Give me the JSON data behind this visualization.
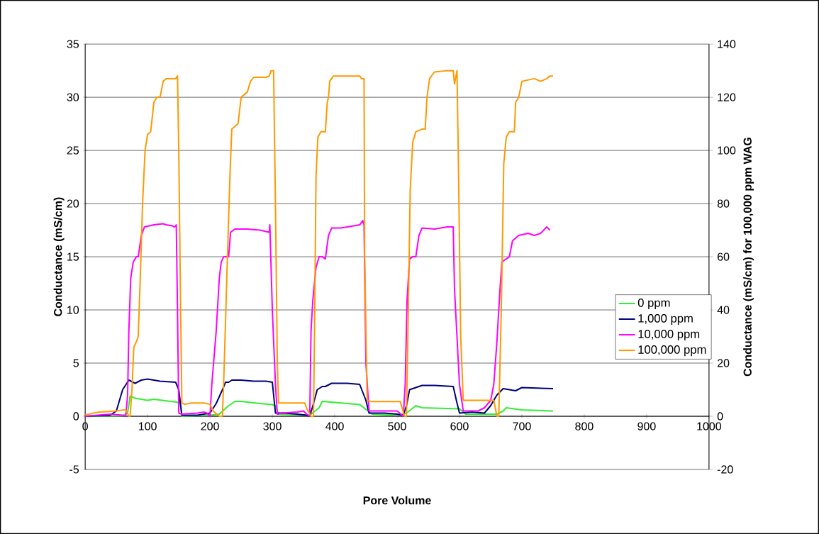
{
  "chart_data": {
    "type": "line",
    "xlabel": "Pore Volume",
    "ylabel": "Conductance (mS/cm)",
    "y2label": "Conductance (mS/cm) for 100,000 ppm WAG",
    "xlim": [
      0,
      1000
    ],
    "xticks": [
      0,
      100,
      200,
      300,
      400,
      500,
      600,
      700,
      800,
      900,
      1000
    ],
    "ylim": [
      -5,
      35
    ],
    "yticks": [
      -5,
      0,
      5,
      10,
      15,
      20,
      25,
      30,
      35
    ],
    "y2lim": [
      -20,
      140
    ],
    "y2ticks": [
      -20,
      0,
      20,
      40,
      60,
      80,
      100,
      120,
      140
    ],
    "grid": "y",
    "legend": "right",
    "marker": "none",
    "line_style": "solid",
    "series": [
      {
        "name": "0 ppm",
        "color": "#33ee33",
        "x": [
          0,
          60,
          68,
          72,
          80,
          100,
          110,
          150,
          152,
          155,
          200,
          215,
          230,
          240,
          250,
          280,
          300,
          305,
          310,
          360,
          375,
          380,
          400,
          440,
          460,
          500,
          515,
          530,
          540,
          600,
          610,
          660,
          670,
          675,
          700,
          750
        ],
        "values": [
          0,
          0.05,
          0.3,
          1.9,
          1.7,
          1.5,
          1.6,
          1.3,
          1.3,
          0,
          0.1,
          0.2,
          1.0,
          1.4,
          1.4,
          1.2,
          1.1,
          1.0,
          0.2,
          0.1,
          0.8,
          1.4,
          1.3,
          1.1,
          0.2,
          0.1,
          0.3,
          1.0,
          0.8,
          0.7,
          0.2,
          0.2,
          0.5,
          0.8,
          0.6,
          0.5
        ]
      },
      {
        "name": "1,000 ppm",
        "color": "#000080",
        "x": [
          0,
          40,
          50,
          55,
          60,
          70,
          80,
          90,
          100,
          120,
          145,
          150,
          155,
          180,
          200,
          210,
          220,
          225,
          230,
          235,
          250,
          270,
          290,
          300,
          305,
          320,
          340,
          355,
          360,
          365,
          372,
          380,
          385,
          395,
          420,
          440,
          450,
          455,
          480,
          500,
          510,
          515,
          520,
          530,
          540,
          560,
          590,
          595,
          600,
          620,
          640,
          650,
          660,
          670,
          680,
          690,
          700,
          750
        ],
        "values": [
          0,
          0.1,
          0.5,
          1.5,
          2.5,
          3.4,
          3.1,
          3.4,
          3.5,
          3.3,
          3.2,
          2.5,
          0.1,
          0.1,
          0.3,
          1.2,
          2.5,
          3.2,
          3.2,
          3.4,
          3.4,
          3.3,
          3.3,
          3.2,
          0.3,
          0.3,
          0.2,
          0.1,
          0,
          1,
          2.5,
          2.8,
          2.8,
          3.1,
          3.1,
          3.0,
          1.5,
          0.3,
          0.3,
          0.2,
          0.1,
          1,
          2.5,
          2.7,
          2.9,
          2.9,
          2.8,
          1.5,
          0.3,
          0.4,
          0.3,
          1,
          2,
          2.6,
          2.5,
          2.4,
          2.7,
          2.6
        ]
      },
      {
        "name": "10,000 ppm",
        "color": "#ff00ff",
        "x": [
          0,
          40,
          60,
          65,
          68,
          70,
          73,
          77,
          82,
          85,
          90,
          95,
          110,
          125,
          130,
          140,
          143,
          146,
          148,
          150,
          155,
          180,
          190,
          195,
          200,
          203,
          210,
          215,
          218,
          222,
          230,
          233,
          240,
          260,
          280,
          295,
          296,
          300,
          305,
          308,
          315,
          340,
          350,
          355,
          360,
          362,
          365,
          370,
          375,
          380,
          385,
          390,
          395,
          410,
          420,
          440,
          445,
          447,
          450,
          455,
          470,
          490,
          500,
          510,
          513,
          516,
          520,
          525,
          530,
          535,
          540,
          560,
          580,
          590,
          592,
          600,
          606,
          630,
          640,
          650,
          655,
          660,
          665,
          668,
          675,
          680,
          685,
          695,
          710,
          720,
          730,
          740,
          745
        ],
        "values": [
          0,
          0.2,
          0.1,
          0,
          2,
          8,
          13,
          14.5,
          15,
          15,
          17,
          17.8,
          18,
          18.1,
          18,
          17.9,
          17.8,
          18,
          10,
          0.3,
          0.2,
          0.3,
          0.4,
          0.3,
          0,
          3,
          8,
          13,
          14.5,
          15,
          15,
          17.3,
          17.6,
          17.6,
          17.5,
          17.3,
          18,
          10,
          3,
          0.2,
          0.3,
          0.4,
          0.5,
          0.2,
          0,
          8,
          11,
          14,
          15,
          15,
          14.8,
          17,
          17.7,
          17.7,
          17.8,
          18,
          18.4,
          18,
          5,
          0.5,
          0.5,
          0.5,
          0.5,
          0,
          3,
          11,
          14.8,
          15,
          15,
          17,
          17.7,
          17.6,
          17.8,
          17.8,
          12,
          3,
          0.5,
          0.5,
          0.8,
          1.5,
          3,
          7,
          12,
          14.5,
          14.8,
          15,
          16.5,
          17,
          17.2,
          17,
          17.2,
          17.8,
          17.5
        ]
      },
      {
        "name": "100,000 ppm",
        "color": "#ff9900",
        "axis": "y2",
        "x": [
          0,
          20,
          50,
          65,
          70,
          72,
          75,
          78,
          82,
          85,
          88,
          92,
          96,
          100,
          105,
          110,
          115,
          120,
          125,
          130,
          140,
          145,
          148,
          150,
          153,
          155,
          160,
          170,
          190,
          200,
          205,
          215,
          220,
          223,
          228,
          232,
          235,
          240,
          245,
          250,
          255,
          260,
          265,
          270,
          290,
          295,
          298,
          302,
          305,
          308,
          310,
          320,
          340,
          352,
          355,
          362,
          366,
          368,
          370,
          373,
          378,
          385,
          388,
          390,
          392,
          398,
          420,
          440,
          443,
          447,
          448,
          452,
          460,
          500,
          505,
          512,
          515,
          518,
          521,
          525,
          530,
          540,
          545,
          548,
          552,
          560,
          580,
          590,
          592,
          596,
          598,
          602,
          606,
          620,
          640,
          655,
          660,
          663,
          667,
          671,
          675,
          680,
          688,
          690,
          695,
          700,
          720,
          730,
          740,
          745,
          750
        ],
        "values": [
          0.5,
          1.5,
          2,
          2.5,
          0,
          0,
          10,
          26,
          28,
          30,
          50,
          80,
          100,
          106,
          107,
          118,
          120,
          120,
          126,
          127,
          127,
          127,
          128,
          100,
          40,
          5,
          4.5,
          5,
          5,
          4.5,
          2,
          0,
          0,
          20,
          60,
          90,
          108,
          109,
          110,
          120,
          121,
          122,
          126,
          127.5,
          127.5,
          128,
          130,
          130,
          80,
          20,
          5,
          5,
          5,
          5,
          3,
          0,
          0,
          40,
          90,
          105,
          107,
          107,
          118,
          120,
          126,
          128,
          128,
          128,
          127,
          127,
          60,
          6,
          5.5,
          5.5,
          5.5,
          0,
          0,
          40,
          85,
          103,
          107,
          108,
          108,
          120,
          127,
          129.5,
          130,
          130,
          125,
          130,
          100,
          30,
          6,
          6,
          6,
          6,
          0,
          0,
          40,
          95,
          105,
          107,
          107,
          118,
          120,
          126,
          127,
          126,
          127,
          128,
          128
        ]
      }
    ]
  }
}
